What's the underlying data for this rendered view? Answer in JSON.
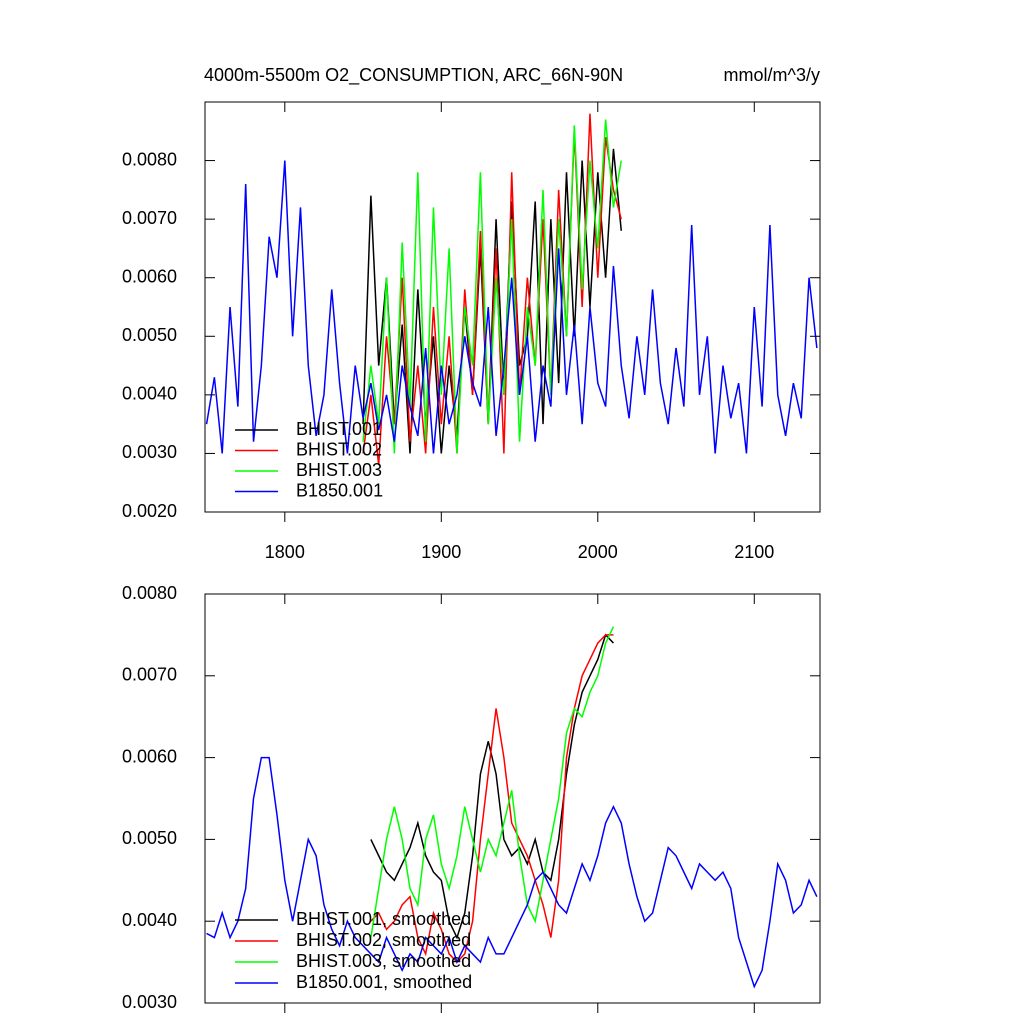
{
  "chart_data": [
    {
      "type": "line",
      "title": "4000m-5500m O2_CONSUMPTION, ARC_66N-90N",
      "units": "mmol/m^3/y",
      "xlim": [
        1749,
        2142
      ],
      "xticks": [
        1800,
        1900,
        2000,
        2100
      ],
      "xtick_labels": true,
      "ylim": [
        0.002,
        0.009
      ],
      "yticks": [
        {
          "value": 0.002,
          "label": "0.0020"
        },
        {
          "value": 0.003,
          "label": "0.0030"
        },
        {
          "value": 0.004,
          "label": "0.0040"
        },
        {
          "value": 0.005,
          "label": "0.0050"
        },
        {
          "value": 0.006,
          "label": "0.0060"
        },
        {
          "value": 0.007,
          "label": "0.0070"
        },
        {
          "value": 0.008,
          "label": "0.0080"
        }
      ],
      "legend": "lower left",
      "series": [
        {
          "name": "BHIST.001",
          "color": "#000000",
          "x": [
            1850,
            1855,
            1860,
            1865,
            1870,
            1875,
            1880,
            1885,
            1890,
            1895,
            1900,
            1905,
            1910,
            1915,
            1920,
            1925,
            1930,
            1935,
            1940,
            1945,
            1950,
            1955,
            1960,
            1965,
            1970,
            1975,
            1980,
            1985,
            1990,
            1995,
            2000,
            2005,
            2010,
            2015
          ],
          "values": [
            0.0035,
            0.0074,
            0.0045,
            0.006,
            0.0035,
            0.0052,
            0.003,
            0.0058,
            0.0035,
            0.005,
            0.003,
            0.0045,
            0.0033,
            0.0055,
            0.004,
            0.0065,
            0.0035,
            0.007,
            0.004,
            0.0073,
            0.0045,
            0.005,
            0.0073,
            0.0035,
            0.007,
            0.0042,
            0.0078,
            0.005,
            0.008,
            0.0055,
            0.0078,
            0.006,
            0.0082,
            0.0068
          ]
        },
        {
          "name": "BHIST.002",
          "color": "#ff0000",
          "x": [
            1850,
            1855,
            1860,
            1865,
            1870,
            1875,
            1880,
            1885,
            1890,
            1895,
            1900,
            1905,
            1910,
            1915,
            1920,
            1925,
            1930,
            1935,
            1940,
            1945,
            1950,
            1955,
            1960,
            1965,
            1970,
            1975,
            1980,
            1985,
            1990,
            1995,
            2000,
            2005,
            2010,
            2015
          ],
          "values": [
            0.003,
            0.004,
            0.0028,
            0.005,
            0.0035,
            0.006,
            0.0032,
            0.0045,
            0.003,
            0.0055,
            0.0035,
            0.005,
            0.003,
            0.0058,
            0.004,
            0.0068,
            0.0035,
            0.0065,
            0.003,
            0.0078,
            0.004,
            0.006,
            0.0045,
            0.007,
            0.004,
            0.0075,
            0.005,
            0.0085,
            0.0055,
            0.0088,
            0.006,
            0.0084,
            0.0075,
            0.007
          ]
        },
        {
          "name": "BHIST.003",
          "color": "#00ff00",
          "x": [
            1850,
            1855,
            1860,
            1865,
            1870,
            1875,
            1880,
            1885,
            1890,
            1895,
            1900,
            1905,
            1910,
            1915,
            1920,
            1925,
            1930,
            1935,
            1940,
            1945,
            1950,
            1955,
            1960,
            1965,
            1970,
            1975,
            1980,
            1985,
            1990,
            1995,
            2000,
            2005,
            2010,
            2015
          ],
          "values": [
            0.0032,
            0.0045,
            0.0035,
            0.006,
            0.003,
            0.0066,
            0.0038,
            0.0078,
            0.0032,
            0.0072,
            0.004,
            0.0065,
            0.003,
            0.0055,
            0.0045,
            0.0078,
            0.0035,
            0.006,
            0.004,
            0.007,
            0.0032,
            0.0055,
            0.0045,
            0.0075,
            0.004,
            0.007,
            0.005,
            0.0086,
            0.0058,
            0.008,
            0.0065,
            0.0087,
            0.0072,
            0.008
          ]
        },
        {
          "name": "B1850.001",
          "color": "#0000ff",
          "x": [
            1750,
            1755,
            1760,
            1765,
            1770,
            1775,
            1780,
            1785,
            1790,
            1795,
            1800,
            1805,
            1810,
            1815,
            1820,
            1825,
            1830,
            1835,
            1840,
            1845,
            1850,
            1855,
            1860,
            1865,
            1870,
            1875,
            1880,
            1885,
            1890,
            1895,
            1900,
            1905,
            1910,
            1915,
            1920,
            1925,
            1930,
            1935,
            1940,
            1945,
            1950,
            1955,
            1960,
            1965,
            1970,
            1975,
            1980,
            1985,
            1990,
            1995,
            2000,
            2005,
            2010,
            2015,
            2020,
            2025,
            2030,
            2035,
            2040,
            2045,
            2050,
            2055,
            2060,
            2065,
            2070,
            2075,
            2080,
            2085,
            2090,
            2095,
            2100,
            2105,
            2110,
            2115,
            2120,
            2125,
            2130,
            2135,
            2140
          ],
          "values": [
            0.0035,
            0.0043,
            0.003,
            0.0055,
            0.0038,
            0.0076,
            0.0032,
            0.0045,
            0.0067,
            0.006,
            0.008,
            0.005,
            0.0072,
            0.0045,
            0.0033,
            0.004,
            0.0058,
            0.0042,
            0.003,
            0.0045,
            0.0036,
            0.0042,
            0.0034,
            0.004,
            0.0032,
            0.0045,
            0.0038,
            0.0033,
            0.0048,
            0.003,
            0.0045,
            0.0035,
            0.004,
            0.005,
            0.0042,
            0.0038,
            0.0055,
            0.0033,
            0.0045,
            0.006,
            0.004,
            0.005,
            0.0032,
            0.0045,
            0.0038,
            0.0065,
            0.004,
            0.0052,
            0.0035,
            0.0055,
            0.0042,
            0.0038,
            0.0062,
            0.0045,
            0.0036,
            0.005,
            0.004,
            0.0058,
            0.0042,
            0.0035,
            0.0048,
            0.0038,
            0.0069,
            0.004,
            0.005,
            0.003,
            0.0045,
            0.0036,
            0.0042,
            0.003,
            0.0055,
            0.0038,
            0.0069,
            0.004,
            0.0033,
            0.0042,
            0.0036,
            0.006,
            0.0048
          ]
        }
      ]
    },
    {
      "type": "line",
      "xlim": [
        1749,
        2142
      ],
      "xticks": [
        1800,
        1900,
        2000,
        2100
      ],
      "xtick_labels": false,
      "ylim": [
        0.003,
        0.008
      ],
      "yticks": [
        {
          "value": 0.003,
          "label": "0.0030"
        },
        {
          "value": 0.004,
          "label": "0.0040"
        },
        {
          "value": 0.005,
          "label": "0.0050"
        },
        {
          "value": 0.006,
          "label": "0.0060"
        },
        {
          "value": 0.007,
          "label": "0.0070"
        },
        {
          "value": 0.008,
          "label": "0.0080"
        }
      ],
      "legend": "lower left",
      "series": [
        {
          "name": "BHIST.001, smoothed",
          "color": "#000000",
          "x": [
            1855,
            1860,
            1865,
            1870,
            1875,
            1880,
            1885,
            1890,
            1895,
            1900,
            1905,
            1910,
            1915,
            1920,
            1925,
            1930,
            1935,
            1940,
            1945,
            1950,
            1955,
            1960,
            1965,
            1970,
            1975,
            1980,
            1985,
            1990,
            1995,
            2000,
            2005,
            2010
          ],
          "values": [
            0.005,
            0.0048,
            0.0046,
            0.0045,
            0.0047,
            0.0049,
            0.0052,
            0.0048,
            0.0046,
            0.0045,
            0.004,
            0.0038,
            0.0041,
            0.0048,
            0.0058,
            0.0062,
            0.0058,
            0.005,
            0.0048,
            0.0049,
            0.0047,
            0.005,
            0.0046,
            0.0045,
            0.005,
            0.0058,
            0.0064,
            0.0068,
            0.007,
            0.0072,
            0.0075,
            0.0074
          ]
        },
        {
          "name": "BHIST.002, smoothed",
          "color": "#ff0000",
          "x": [
            1855,
            1860,
            1865,
            1870,
            1875,
            1880,
            1885,
            1890,
            1895,
            1900,
            1905,
            1910,
            1915,
            1920,
            1925,
            1930,
            1935,
            1940,
            1945,
            1950,
            1955,
            1960,
            1965,
            1970,
            1975,
            1980,
            1985,
            1990,
            1995,
            2000,
            2005,
            2010
          ],
          "values": [
            0.004,
            0.0041,
            0.0039,
            0.004,
            0.0042,
            0.0043,
            0.0038,
            0.0036,
            0.0041,
            0.0039,
            0.0036,
            0.0035,
            0.0036,
            0.004,
            0.005,
            0.0058,
            0.0066,
            0.006,
            0.0052,
            0.005,
            0.0048,
            0.0045,
            0.0042,
            0.0038,
            0.0045,
            0.006,
            0.0066,
            0.007,
            0.0072,
            0.0074,
            0.0075,
            0.0075
          ]
        },
        {
          "name": "BHIST.003, smoothed",
          "color": "#00ff00",
          "x": [
            1855,
            1860,
            1865,
            1870,
            1875,
            1880,
            1885,
            1890,
            1895,
            1900,
            1905,
            1910,
            1915,
            1920,
            1925,
            1930,
            1935,
            1940,
            1945,
            1950,
            1955,
            1960,
            1965,
            1970,
            1975,
            1980,
            1985,
            1990,
            1995,
            2000,
            2005,
            2010
          ],
          "values": [
            0.0038,
            0.0044,
            0.005,
            0.0054,
            0.005,
            0.0044,
            0.0042,
            0.005,
            0.0053,
            0.0047,
            0.0044,
            0.0048,
            0.0054,
            0.005,
            0.0046,
            0.005,
            0.0048,
            0.0052,
            0.0056,
            0.0048,
            0.0042,
            0.004,
            0.0045,
            0.005,
            0.0055,
            0.0063,
            0.0066,
            0.0065,
            0.0068,
            0.007,
            0.0074,
            0.0076
          ]
        },
        {
          "name": "B1850.001, smoothed",
          "color": "#0000ff",
          "x": [
            1750,
            1755,
            1760,
            1765,
            1770,
            1775,
            1780,
            1785,
            1790,
            1795,
            1800,
            1805,
            1810,
            1815,
            1820,
            1825,
            1830,
            1835,
            1840,
            1845,
            1850,
            1855,
            1860,
            1865,
            1870,
            1875,
            1880,
            1885,
            1890,
            1895,
            1900,
            1905,
            1910,
            1915,
            1920,
            1925,
            1930,
            1935,
            1940,
            1945,
            1950,
            1955,
            1960,
            1965,
            1970,
            1975,
            1980,
            1985,
            1990,
            1995,
            2000,
            2005,
            2010,
            2015,
            2020,
            2025,
            2030,
            2035,
            2040,
            2045,
            2050,
            2055,
            2060,
            2065,
            2070,
            2075,
            2080,
            2085,
            2090,
            2095,
            2100,
            2105,
            2110,
            2115,
            2120,
            2125,
            2130,
            2135,
            2140
          ],
          "values": [
            0.00385,
            0.0038,
            0.0041,
            0.0038,
            0.004,
            0.0044,
            0.0055,
            0.006,
            0.006,
            0.0053,
            0.0045,
            0.004,
            0.0045,
            0.005,
            0.0048,
            0.0042,
            0.0039,
            0.0037,
            0.004,
            0.0038,
            0.0037,
            0.0036,
            0.0035,
            0.0038,
            0.0036,
            0.0034,
            0.0036,
            0.0035,
            0.0038,
            0.0037,
            0.0036,
            0.0038,
            0.0035,
            0.0037,
            0.0036,
            0.0035,
            0.0038,
            0.0036,
            0.0036,
            0.0038,
            0.004,
            0.0042,
            0.0045,
            0.0046,
            0.0044,
            0.0042,
            0.0041,
            0.0044,
            0.0047,
            0.0045,
            0.0048,
            0.0052,
            0.0054,
            0.0052,
            0.0047,
            0.0043,
            0.004,
            0.0041,
            0.0045,
            0.0049,
            0.0048,
            0.0046,
            0.0044,
            0.0047,
            0.0046,
            0.0045,
            0.0046,
            0.0044,
            0.0038,
            0.0035,
            0.0032,
            0.0034,
            0.004,
            0.0047,
            0.0045,
            0.0041,
            0.0042,
            0.0045,
            0.0043
          ]
        }
      ]
    }
  ]
}
